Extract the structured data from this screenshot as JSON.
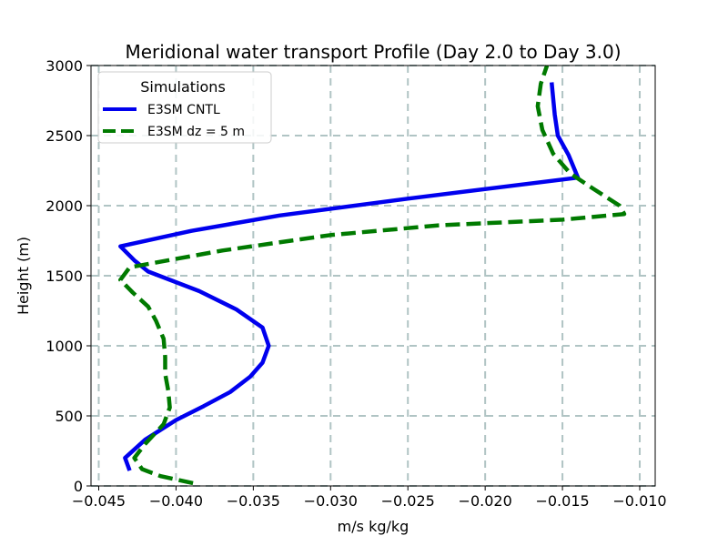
{
  "chart_data": {
    "type": "line",
    "title": "Meridional water transport Profile (Day 2.0 to Day 3.0)",
    "xlabel": "m/s kg/kg",
    "ylabel": "Height (m)",
    "xlim": [
      -0.0455,
      -0.009
    ],
    "ylim": [
      0,
      3000
    ],
    "xticks": [
      -0.045,
      -0.04,
      -0.035,
      -0.03,
      -0.025,
      -0.02,
      -0.015,
      -0.01
    ],
    "xtick_labels": [
      "−0.045",
      "−0.040",
      "−0.035",
      "−0.030",
      "−0.025",
      "−0.020",
      "−0.015",
      "−0.010"
    ],
    "yticks": [
      0,
      500,
      1000,
      1500,
      2000,
      2500,
      3000
    ],
    "ytick_labels": [
      "0",
      "500",
      "1000",
      "1500",
      "2000",
      "2500",
      "3000"
    ],
    "grid": true,
    "legend": {
      "title": "Simulations",
      "location": "upper-left"
    },
    "series": [
      {
        "name": "E3SM CNTL",
        "color": "#0000ee",
        "style": "solid",
        "points": [
          [
            -0.043,
            110
          ],
          [
            -0.0433,
            200
          ],
          [
            -0.042,
            330
          ],
          [
            -0.04,
            470
          ],
          [
            -0.0382,
            570
          ],
          [
            -0.0365,
            670
          ],
          [
            -0.0352,
            780
          ],
          [
            -0.0344,
            880
          ],
          [
            -0.034,
            1000
          ],
          [
            -0.0344,
            1130
          ],
          [
            -0.0361,
            1260
          ],
          [
            -0.0385,
            1390
          ],
          [
            -0.0418,
            1530
          ],
          [
            -0.0427,
            1610
          ],
          [
            -0.0436,
            1710
          ],
          [
            -0.039,
            1820
          ],
          [
            -0.0333,
            1930
          ],
          [
            -0.025,
            2050
          ],
          [
            -0.014,
            2200
          ],
          [
            -0.0146,
            2360
          ],
          [
            -0.0153,
            2500
          ],
          [
            -0.0155,
            2650
          ],
          [
            -0.0157,
            2880
          ]
        ]
      },
      {
        "name": "E3SM dz = 5 m",
        "color": "#007a00",
        "style": "dashed",
        "points": [
          [
            -0.0389,
            20
          ],
          [
            -0.041,
            70
          ],
          [
            -0.0422,
            120
          ],
          [
            -0.0427,
            200
          ],
          [
            -0.042,
            300
          ],
          [
            -0.0408,
            440
          ],
          [
            -0.0404,
            560
          ],
          [
            -0.0405,
            680
          ],
          [
            -0.0407,
            800
          ],
          [
            -0.0407,
            920
          ],
          [
            -0.0408,
            1050
          ],
          [
            -0.0413,
            1180
          ],
          [
            -0.0418,
            1280
          ],
          [
            -0.0428,
            1380
          ],
          [
            -0.0436,
            1470
          ],
          [
            -0.043,
            1560
          ],
          [
            -0.0415,
            1590
          ],
          [
            -0.037,
            1680
          ],
          [
            -0.03,
            1790
          ],
          [
            -0.023,
            1860
          ],
          [
            -0.015,
            1900
          ],
          [
            -0.011,
            1940
          ],
          [
            -0.0113,
            2000
          ],
          [
            -0.013,
            2120
          ],
          [
            -0.0145,
            2230
          ],
          [
            -0.0156,
            2370
          ],
          [
            -0.0163,
            2540
          ],
          [
            -0.0166,
            2710
          ],
          [
            -0.0164,
            2870
          ],
          [
            -0.016,
            3000
          ]
        ]
      }
    ]
  }
}
